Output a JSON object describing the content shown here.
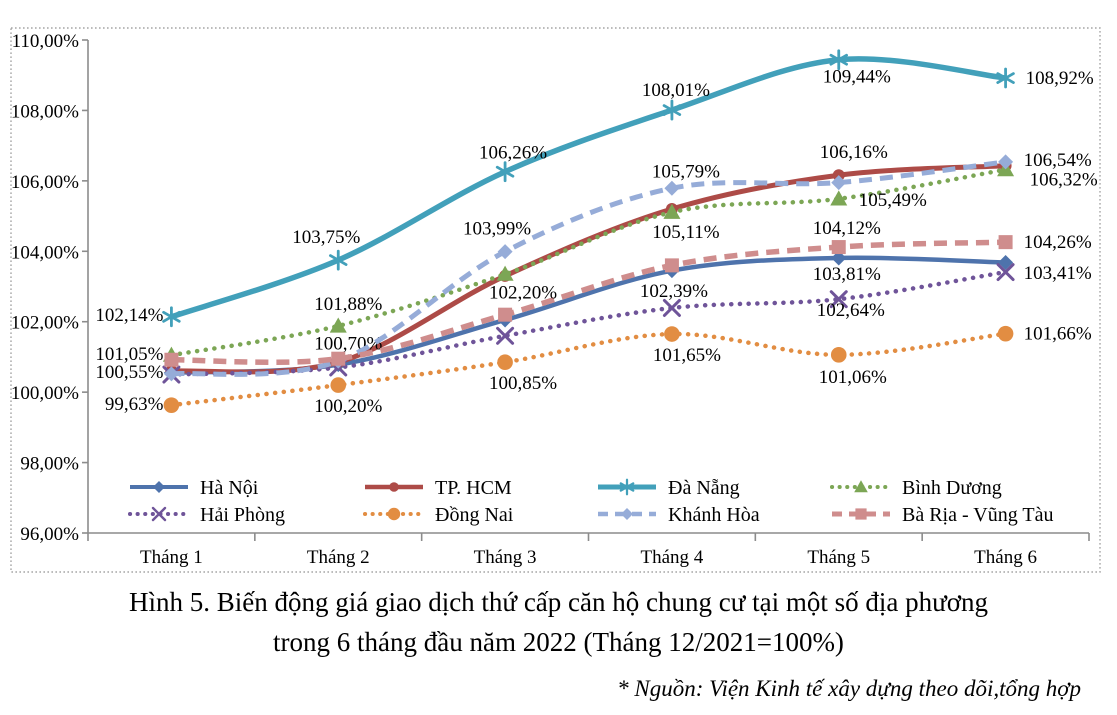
{
  "figure": {
    "title_line1": "Hình 5. Biến động giá giao dịch thứ cấp căn hộ chung cư tại một số địa phương",
    "title_line2": "trong 6 tháng đầu năm 2022 (Tháng 12/2021=100%)",
    "source_note": "* Nguồn: Viện Kinh tế xây dựng theo dõi,tổng hợp"
  },
  "chart_data": {
    "type": "line",
    "title": "Hình 5. Biến động giá giao dịch thứ cấp căn hộ chung cư tại một số địa phương trong 6 tháng đầu năm 2022 (Tháng 12/2021=100%)",
    "categories": [
      "Tháng 1",
      "Tháng 2",
      "Tháng 3",
      "Tháng 4",
      "Tháng 5",
      "Tháng 6"
    ],
    "y_axis": {
      "min": 96,
      "max": 110,
      "step": 2,
      "tick_labels": [
        "96,00%",
        "98,00%",
        "100,00%",
        "102,00%",
        "104,00%",
        "106,00%",
        "108,00%",
        "110,00%"
      ]
    },
    "grid": false,
    "legend_position": "bottom-inside",
    "axis_color": "#8C8C8C",
    "frame_color": "#A6A6A6",
    "series": [
      {
        "name": "Hà Nội",
        "slug": "ha-noi",
        "color": "#4E73AC",
        "line_style": "solid",
        "marker": "diamond",
        "values": [
          100.55,
          100.78,
          102.05,
          103.45,
          103.81,
          103.68
        ],
        "labels": [
          {
            "t": "100,55%",
            "dx": -8,
            "dy": 5,
            "a": "end"
          },
          null,
          null,
          null,
          {
            "t": "103,81%",
            "dx": 8,
            "dy": 22,
            "a": "middle"
          },
          null
        ]
      },
      {
        "name": "TP. HCM",
        "slug": "tp-hcm",
        "color": "#AD4B47",
        "line_style": "solid",
        "marker": "circle",
        "values": [
          100.6,
          100.85,
          103.3,
          105.2,
          106.16,
          106.43
        ],
        "labels": [
          null,
          null,
          null,
          null,
          {
            "t": "106,16%",
            "dx": 15,
            "dy": -17,
            "a": "middle"
          },
          null
        ]
      },
      {
        "name": "Đà Nẵng",
        "slug": "da-nang",
        "color": "#42A0BA",
        "line_style": "solid",
        "marker": "star",
        "values": [
          102.14,
          103.75,
          106.26,
          108.01,
          109.44,
          108.92
        ],
        "labels": [
          {
            "t": "102,14%",
            "dx": -8,
            "dy": 4,
            "a": "end"
          },
          {
            "t": "103,75%",
            "dx": -12,
            "dy": -17,
            "a": "middle"
          },
          {
            "t": "106,26%",
            "dx": 8,
            "dy": -13,
            "a": "middle"
          },
          {
            "t": "108,01%",
            "dx": 4,
            "dy": -14,
            "a": "middle"
          },
          {
            "t": "109,44%",
            "dx": 18,
            "dy": 23,
            "a": "middle"
          },
          {
            "t": "108,92%",
            "dx": 20,
            "dy": 6,
            "a": "start"
          }
        ]
      },
      {
        "name": "Bình Dương",
        "slug": "binh-duong",
        "color": "#7CA655",
        "line_style": "dotted",
        "marker": "triangle",
        "values": [
          101.05,
          101.88,
          103.35,
          105.11,
          105.49,
          106.32
        ],
        "labels": [
          {
            "t": "101,05%",
            "dx": -8,
            "dy": 5,
            "a": "end"
          },
          {
            "t": "101,88%",
            "dx": 10,
            "dy": -16,
            "a": "middle"
          },
          null,
          {
            "t": "105,11%",
            "dx": 14,
            "dy": 26,
            "a": "middle"
          },
          {
            "t": "105,49%",
            "dx": 20,
            "dy": 7,
            "a": "start"
          },
          {
            "t": "106,32%",
            "dx": 24,
            "dy": 16,
            "a": "start"
          }
        ]
      },
      {
        "name": "Hải Phòng",
        "slug": "hai-phong",
        "color": "#6F5499",
        "line_style": "dotted",
        "marker": "x",
        "values": [
          100.5,
          100.7,
          101.6,
          102.39,
          102.64,
          103.41
        ],
        "labels": [
          null,
          {
            "t": "100,70%",
            "dx": 10,
            "dy": -18,
            "a": "middle"
          },
          null,
          {
            "t": "102,39%",
            "dx": 2,
            "dy": -11,
            "a": "middle"
          },
          {
            "t": "102,64%",
            "dx": 12,
            "dy": 17,
            "a": "middle"
          },
          {
            "t": "103,41%",
            "dx": 18,
            "dy": 7,
            "a": "start"
          }
        ]
      },
      {
        "name": "Đồng Nai",
        "slug": "dong-nai",
        "color": "#E28D42",
        "line_style": "dotted",
        "marker": "circle-big",
        "values": [
          99.63,
          100.2,
          100.85,
          101.65,
          101.06,
          101.66
        ],
        "labels": [
          {
            "t": "99,63%",
            "dx": -8,
            "dy": 5,
            "a": "end"
          },
          {
            "t": "100,20%",
            "dx": 10,
            "dy": 27,
            "a": "middle"
          },
          {
            "t": "100,85%",
            "dx": 18,
            "dy": 27,
            "a": "middle"
          },
          {
            "t": "101,65%",
            "dx": 15,
            "dy": 27,
            "a": "middle"
          },
          {
            "t": "101,06%",
            "dx": 14,
            "dy": 28,
            "a": "middle"
          },
          {
            "t": "101,66%",
            "dx": 18,
            "dy": 6,
            "a": "start"
          }
        ]
      },
      {
        "name": "Khánh Hòa",
        "slug": "khanh-hoa",
        "color": "#96ACD8",
        "line_style": "dashed",
        "marker": "diamond",
        "values": [
          100.52,
          100.88,
          103.99,
          105.79,
          105.95,
          106.54
        ],
        "labels": [
          null,
          null,
          {
            "t": "103,99%",
            "dx": -8,
            "dy": -17,
            "a": "middle"
          },
          {
            "t": "105,79%",
            "dx": 14,
            "dy": -11,
            "a": "middle"
          },
          null,
          {
            "t": "106,54%",
            "dx": 18,
            "dy": 4,
            "a": "start"
          }
        ]
      },
      {
        "name": "Bà Rịa - Vũng Tàu",
        "slug": "ba-ria-vung-tau",
        "color": "#CF8D8D",
        "line_style": "dashed",
        "marker": "square",
        "values": [
          100.92,
          100.95,
          102.2,
          103.6,
          104.12,
          104.26
        ],
        "labels": [
          null,
          null,
          {
            "t": "102,20%",
            "dx": 18,
            "dy": -16,
            "a": "middle"
          },
          null,
          {
            "t": "104,12%",
            "dx": 8,
            "dy": -13,
            "a": "middle"
          },
          {
            "t": "104,26%",
            "dx": 18,
            "dy": 6,
            "a": "start"
          }
        ]
      }
    ]
  }
}
